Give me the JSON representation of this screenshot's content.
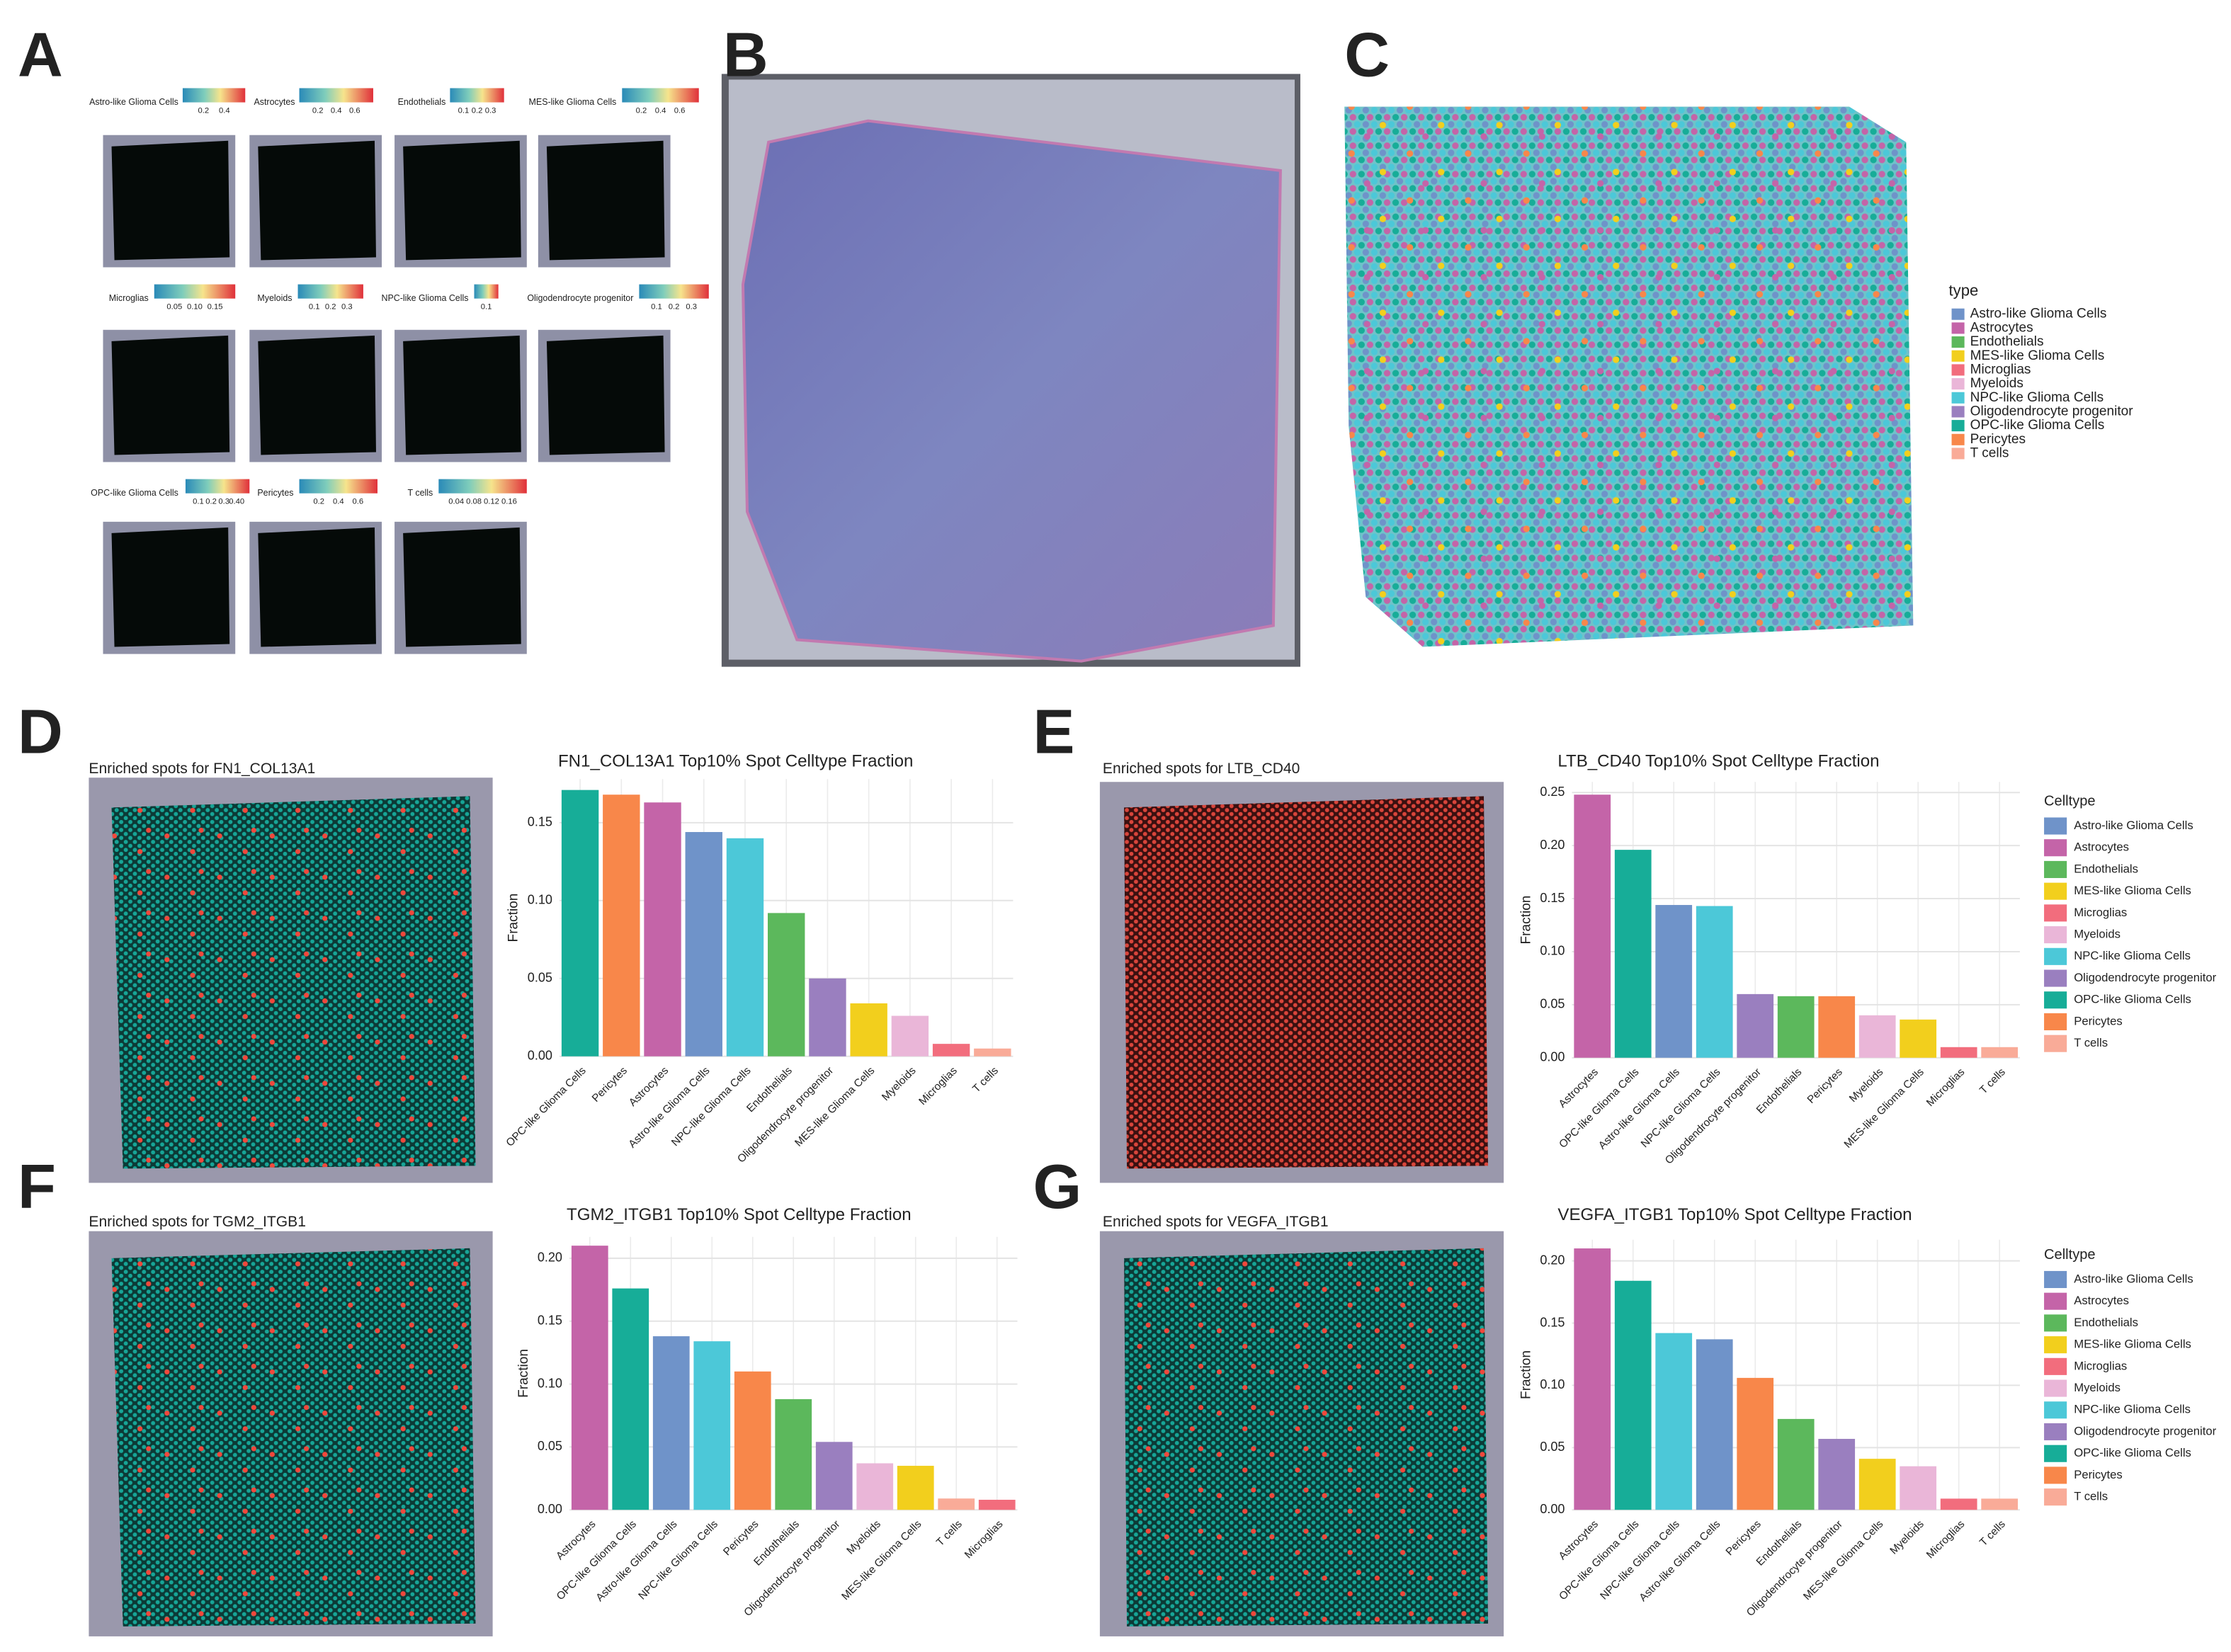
{
  "panel_labels": [
    "A",
    "B",
    "C",
    "D",
    "E",
    "F",
    "G"
  ],
  "panel_a": [
    {
      "title": "Astro-like Glioma Cells",
      "ticks": [
        "0.2",
        "0.4"
      ]
    },
    {
      "title": "Astrocytes",
      "ticks": [
        "0.2",
        "0.4",
        "0.6"
      ]
    },
    {
      "title": "Endothelials",
      "ticks": [
        "0.1",
        "0.2",
        "0.3"
      ]
    },
    {
      "title": "MES-like Glioma Cells",
      "ticks": [
        "0.2",
        "0.4",
        "0.6"
      ]
    },
    {
      "title": "Microglias",
      "ticks": [
        "0.05",
        "0.10",
        "0.15"
      ]
    },
    {
      "title": "Myeloids",
      "ticks": [
        "0.1",
        "0.2",
        "0.3"
      ]
    },
    {
      "title": "NPC-like Glioma Cells",
      "ticks": [
        "0.1"
      ]
    },
    {
      "title": "Oligodendrocyte progenitor",
      "ticks": [
        "0.1",
        "0.2",
        "0.3"
      ]
    },
    {
      "title": "OPC-like Glioma Cells",
      "ticks": [
        "0.1",
        "0.2",
        "0.3",
        "0.40"
      ]
    },
    {
      "title": "Pericytes",
      "ticks": [
        "0.2",
        "0.4",
        "0.6"
      ]
    },
    {
      "title": "T cells",
      "ticks": [
        "0.04",
        "0.08",
        "0.12",
        "0.16"
      ]
    }
  ],
  "panel_c": {
    "legend_title": "type",
    "items": [
      "Astro-like Glioma Cells",
      "Astrocytes",
      "Endothelials",
      "MES-like Glioma Cells",
      "Microglias",
      "Myeloids",
      "NPC-like Glioma Cells",
      "Oligodendrocyte progenitor",
      "OPC-like Glioma Cells",
      "Pericytes",
      "T cells"
    ],
    "colors": [
      "#6f93c9",
      "#c464a8",
      "#5cb85c",
      "#f2cf1d",
      "#f26d7d",
      "#eab6d8",
      "#4cc8d8",
      "#9a7fbf",
      "#17ad98",
      "#f8874a",
      "#f9ab98"
    ]
  },
  "spatial_titles": [
    "Enriched spots for FN1_COL13A1",
    "Enriched spots for LTB_CD40",
    "Enriched spots for TGM2_ITGB1",
    "Enriched spots for VEGFA_ITGB1"
  ],
  "chart_data": [
    {
      "type": "bar",
      "title": "FN1_COL13A1 Top10% Spot Celltype Fraction",
      "ylabel": "Fraction",
      "categories": [
        "OPC-like Glioma Cells",
        "Pericytes",
        "Astrocytes",
        "Astro-like Glioma Cells",
        "NPC-like Glioma Cells",
        "Endothelials",
        "Oligodendrocyte progenitor",
        "MES-like Glioma Cells",
        "Myeloids",
        "Microglias",
        "T cells"
      ],
      "values": [
        0.171,
        0.168,
        0.163,
        0.144,
        0.14,
        0.092,
        0.05,
        0.034,
        0.026,
        0.008,
        0.005
      ],
      "colors": [
        "#17ad98",
        "#f8874a",
        "#c464a8",
        "#6f93c9",
        "#4cc8d8",
        "#5cb85c",
        "#9a7fbf",
        "#f2cf1d",
        "#eab6d8",
        "#f26d7d",
        "#f9ab98"
      ],
      "ylim": [
        0,
        0.178
      ],
      "yticks": [
        {
          "value": 0,
          "label": "0.00"
        },
        0.05,
        {
          "value": 0.1,
          "label": "0.10"
        },
        0.15
      ],
      "grid": true
    },
    {
      "type": "bar",
      "title": "LTB_CD40 Top10% Spot Celltype Fraction",
      "ylabel": "Fraction",
      "categories": [
        "Astrocytes",
        "OPC-like Glioma Cells",
        "Astro-like Glioma Cells",
        "NPC-like Glioma Cells",
        "Oligodendrocyte progenitor",
        "Endothelials",
        "Pericytes",
        "Myeloids",
        "MES-like Glioma Cells",
        "Microglias",
        "T cells"
      ],
      "values": [
        0.248,
        0.196,
        0.144,
        0.143,
        0.06,
        0.058,
        0.058,
        0.04,
        0.036,
        0.01,
        0.01
      ],
      "colors": [
        "#c464a8",
        "#17ad98",
        "#6f93c9",
        "#4cc8d8",
        "#9a7fbf",
        "#5cb85c",
        "#f8874a",
        "#eab6d8",
        "#f2cf1d",
        "#f26d7d",
        "#f9ab98"
      ],
      "ylim": [
        0,
        0.26
      ],
      "yticks": [
        {
          "value": 0,
          "label": "0.00"
        },
        0.05,
        {
          "value": 0.1,
          "label": "0.10"
        },
        0.15,
        {
          "value": 0.2,
          "label": "0.20"
        },
        0.25
      ],
      "grid": true,
      "legend": {
        "title": "Celltype",
        "items": [
          "Astro-like Glioma Cells",
          "Astrocytes",
          "Endothelials",
          "MES-like Glioma Cells",
          "Microglias",
          "Myeloids",
          "NPC-like Glioma Cells",
          "Oligodendrocyte progenitor",
          "OPC-like Glioma Cells",
          "Pericytes",
          "T cells"
        ],
        "colors": [
          "#6f93c9",
          "#c464a8",
          "#5cb85c",
          "#f2cf1d",
          "#f26d7d",
          "#eab6d8",
          "#4cc8d8",
          "#9a7fbf",
          "#17ad98",
          "#f8874a",
          "#f9ab98"
        ]
      }
    },
    {
      "type": "bar",
      "title": "TGM2_ITGB1 Top10% Spot Celltype Fraction",
      "ylabel": "Fraction",
      "categories": [
        "Astrocytes",
        "OPC-like Glioma Cells",
        "Astro-like Glioma Cells",
        "NPC-like Glioma Cells",
        "Pericytes",
        "Endothelials",
        "Oligodendrocyte progenitor",
        "Myeloids",
        "MES-like Glioma Cells",
        "T cells",
        "Microglias"
      ],
      "values": [
        0.21,
        0.176,
        0.138,
        0.134,
        0.11,
        0.088,
        0.054,
        0.037,
        0.035,
        0.009,
        0.008
      ],
      "colors": [
        "#c464a8",
        "#17ad98",
        "#6f93c9",
        "#4cc8d8",
        "#f8874a",
        "#5cb85c",
        "#9a7fbf",
        "#eab6d8",
        "#f2cf1d",
        "#f9ab98",
        "#f26d7d"
      ],
      "ylim": [
        0,
        0.217
      ],
      "yticks": [
        {
          "value": 0,
          "label": "0.00"
        },
        0.05,
        {
          "value": 0.1,
          "label": "0.10"
        },
        0.15,
        {
          "value": 0.2,
          "label": "0.20"
        }
      ],
      "grid": true
    },
    {
      "type": "bar",
      "title": "VEGFA_ITGB1 Top10% Spot Celltype Fraction",
      "ylabel": "Fraction",
      "categories": [
        "Astrocytes",
        "OPC-like Glioma Cells",
        "NPC-like Glioma Cells",
        "Astro-like Glioma Cells",
        "Pericytes",
        "Endothelials",
        "Oligodendrocyte progenitor",
        "MES-like Glioma Cells",
        "Myeloids",
        "Microglias",
        "T cells"
      ],
      "values": [
        0.21,
        0.184,
        0.142,
        0.137,
        0.106,
        0.073,
        0.057,
        0.041,
        0.035,
        0.009,
        0.009
      ],
      "colors": [
        "#c464a8",
        "#17ad98",
        "#4cc8d8",
        "#6f93c9",
        "#f8874a",
        "#5cb85c",
        "#9a7fbf",
        "#f2cf1d",
        "#eab6d8",
        "#f26d7d",
        "#f9ab98"
      ],
      "ylim": [
        0,
        0.217
      ],
      "yticks": [
        {
          "value": 0,
          "label": "0.00"
        },
        0.05,
        {
          "value": 0.1,
          "label": "0.10"
        },
        0.15,
        {
          "value": 0.2,
          "label": "0.20"
        }
      ],
      "grid": true,
      "legend": {
        "title": "Celltype",
        "items": [
          "Astro-like Glioma Cells",
          "Astrocytes",
          "Endothelials",
          "MES-like Glioma Cells",
          "Microglias",
          "Myeloids",
          "NPC-like Glioma Cells",
          "Oligodendrocyte progenitor",
          "OPC-like Glioma Cells",
          "Pericytes",
          "T cells"
        ],
        "colors": [
          "#6f93c9",
          "#c464a8",
          "#5cb85c",
          "#f2cf1d",
          "#f26d7d",
          "#eab6d8",
          "#4cc8d8",
          "#9a7fbf",
          "#17ad98",
          "#f8874a",
          "#f9ab98"
        ]
      }
    }
  ]
}
